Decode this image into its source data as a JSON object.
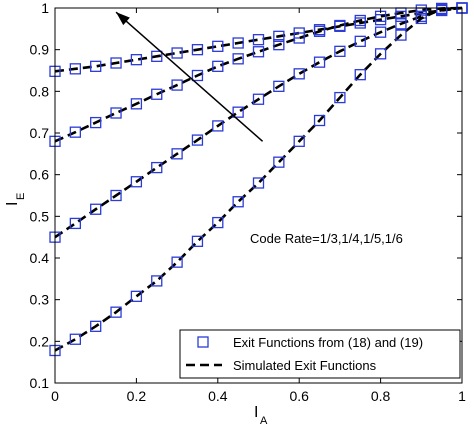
{
  "chart_data": {
    "type": "line",
    "xlabel": {
      "main": "I",
      "sub": "A"
    },
    "ylabel": {
      "main": "I",
      "sub": "E"
    },
    "xlim": [
      0,
      1
    ],
    "ylim": [
      0.1,
      1
    ],
    "x_ticks": [
      "0",
      "0.2",
      "0.4",
      "0.6",
      "0.8",
      "1"
    ],
    "y_ticks": [
      "0.1",
      "0.2",
      "0.3",
      "0.4",
      "0.5",
      "0.6",
      "0.7",
      "0.8",
      "0.9",
      "1"
    ],
    "grid": false,
    "legend": {
      "position": "bottom-right",
      "entries": [
        {
          "label": "Exit Functions from (18) and (19)",
          "marker": "square",
          "color": "#2b3bd6"
        },
        {
          "label": "Simulated Exit Functions",
          "line": "dashed",
          "color": "#000000"
        }
      ]
    },
    "annotation": {
      "text": "Code Rate=1/3,1/4,1/5,1/6",
      "arrow_from": [
        0.51,
        0.68
      ],
      "arrow_to": [
        0.15,
        0.99
      ]
    },
    "x": [
      0,
      0.05,
      0.1,
      0.15,
      0.2,
      0.25,
      0.3,
      0.35,
      0.4,
      0.45,
      0.5,
      0.55,
      0.6,
      0.65,
      0.7,
      0.75,
      0.8,
      0.85,
      0.9,
      0.95,
      1.0
    ],
    "series": [
      {
        "values": [
          0.848,
          0.854,
          0.86,
          0.868,
          0.876,
          0.884,
          0.892,
          0.9,
          0.908,
          0.916,
          0.924,
          0.932,
          0.94,
          0.948,
          0.956,
          0.964,
          0.972,
          0.98,
          0.988,
          0.994,
          1.0
        ]
      },
      {
        "values": [
          0.68,
          0.702,
          0.725,
          0.748,
          0.77,
          0.793,
          0.815,
          0.838,
          0.86,
          0.878,
          0.895,
          0.912,
          0.928,
          0.944,
          0.958,
          0.97,
          0.98,
          0.988,
          0.995,
          0.999,
          1.0
        ]
      },
      {
        "values": [
          0.45,
          0.483,
          0.517,
          0.55,
          0.583,
          0.617,
          0.65,
          0.683,
          0.717,
          0.75,
          0.781,
          0.812,
          0.842,
          0.87,
          0.896,
          0.92,
          0.942,
          0.962,
          0.98,
          0.995,
          1.0
        ]
      },
      {
        "values": [
          0.178,
          0.205,
          0.236,
          0.27,
          0.308,
          0.345,
          0.39,
          0.44,
          0.485,
          0.535,
          0.58,
          0.63,
          0.68,
          0.73,
          0.785,
          0.84,
          0.89,
          0.935,
          0.975,
          0.998,
          1.0
        ]
      }
    ]
  }
}
